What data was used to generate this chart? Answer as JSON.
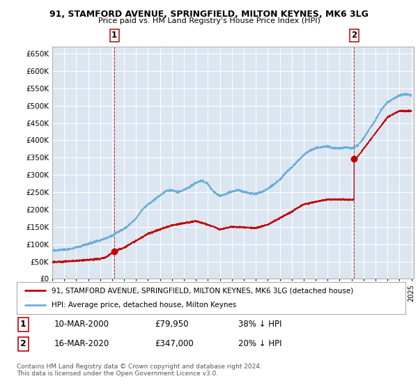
{
  "title": "91, STAMFORD AVENUE, SPRINGFIELD, MILTON KEYNES, MK6 3LG",
  "subtitle": "Price paid vs. HM Land Registry's House Price Index (HPI)",
  "ytick_vals": [
    0,
    50000,
    100000,
    150000,
    200000,
    250000,
    300000,
    350000,
    400000,
    450000,
    500000,
    550000,
    600000,
    650000
  ],
  "ylim": [
    0,
    670000
  ],
  "xlim_start": 1995.0,
  "xlim_end": 2025.2,
  "hpi_color": "#6baed6",
  "price_color": "#c00000",
  "plot_bg_color": "#dce6f1",
  "grid_color": "#ffffff",
  "sale1_x": 2000.19,
  "sale1_y": 79950,
  "sale2_x": 2020.21,
  "sale2_y": 347000,
  "legend_line1": "91, STAMFORD AVENUE, SPRINGFIELD, MILTON KEYNES, MK6 3LG (detached house)",
  "legend_line2": "HPI: Average price, detached house, Milton Keynes",
  "note1_date": "10-MAR-2000",
  "note1_price": "£79,950",
  "note1_hpi": "38% ↓ HPI",
  "note2_date": "16-MAR-2020",
  "note2_price": "£347,000",
  "note2_hpi": "20% ↓ HPI",
  "footer": "Contains HM Land Registry data © Crown copyright and database right 2024.\nThis data is licensed under the Open Government Licence v3.0."
}
